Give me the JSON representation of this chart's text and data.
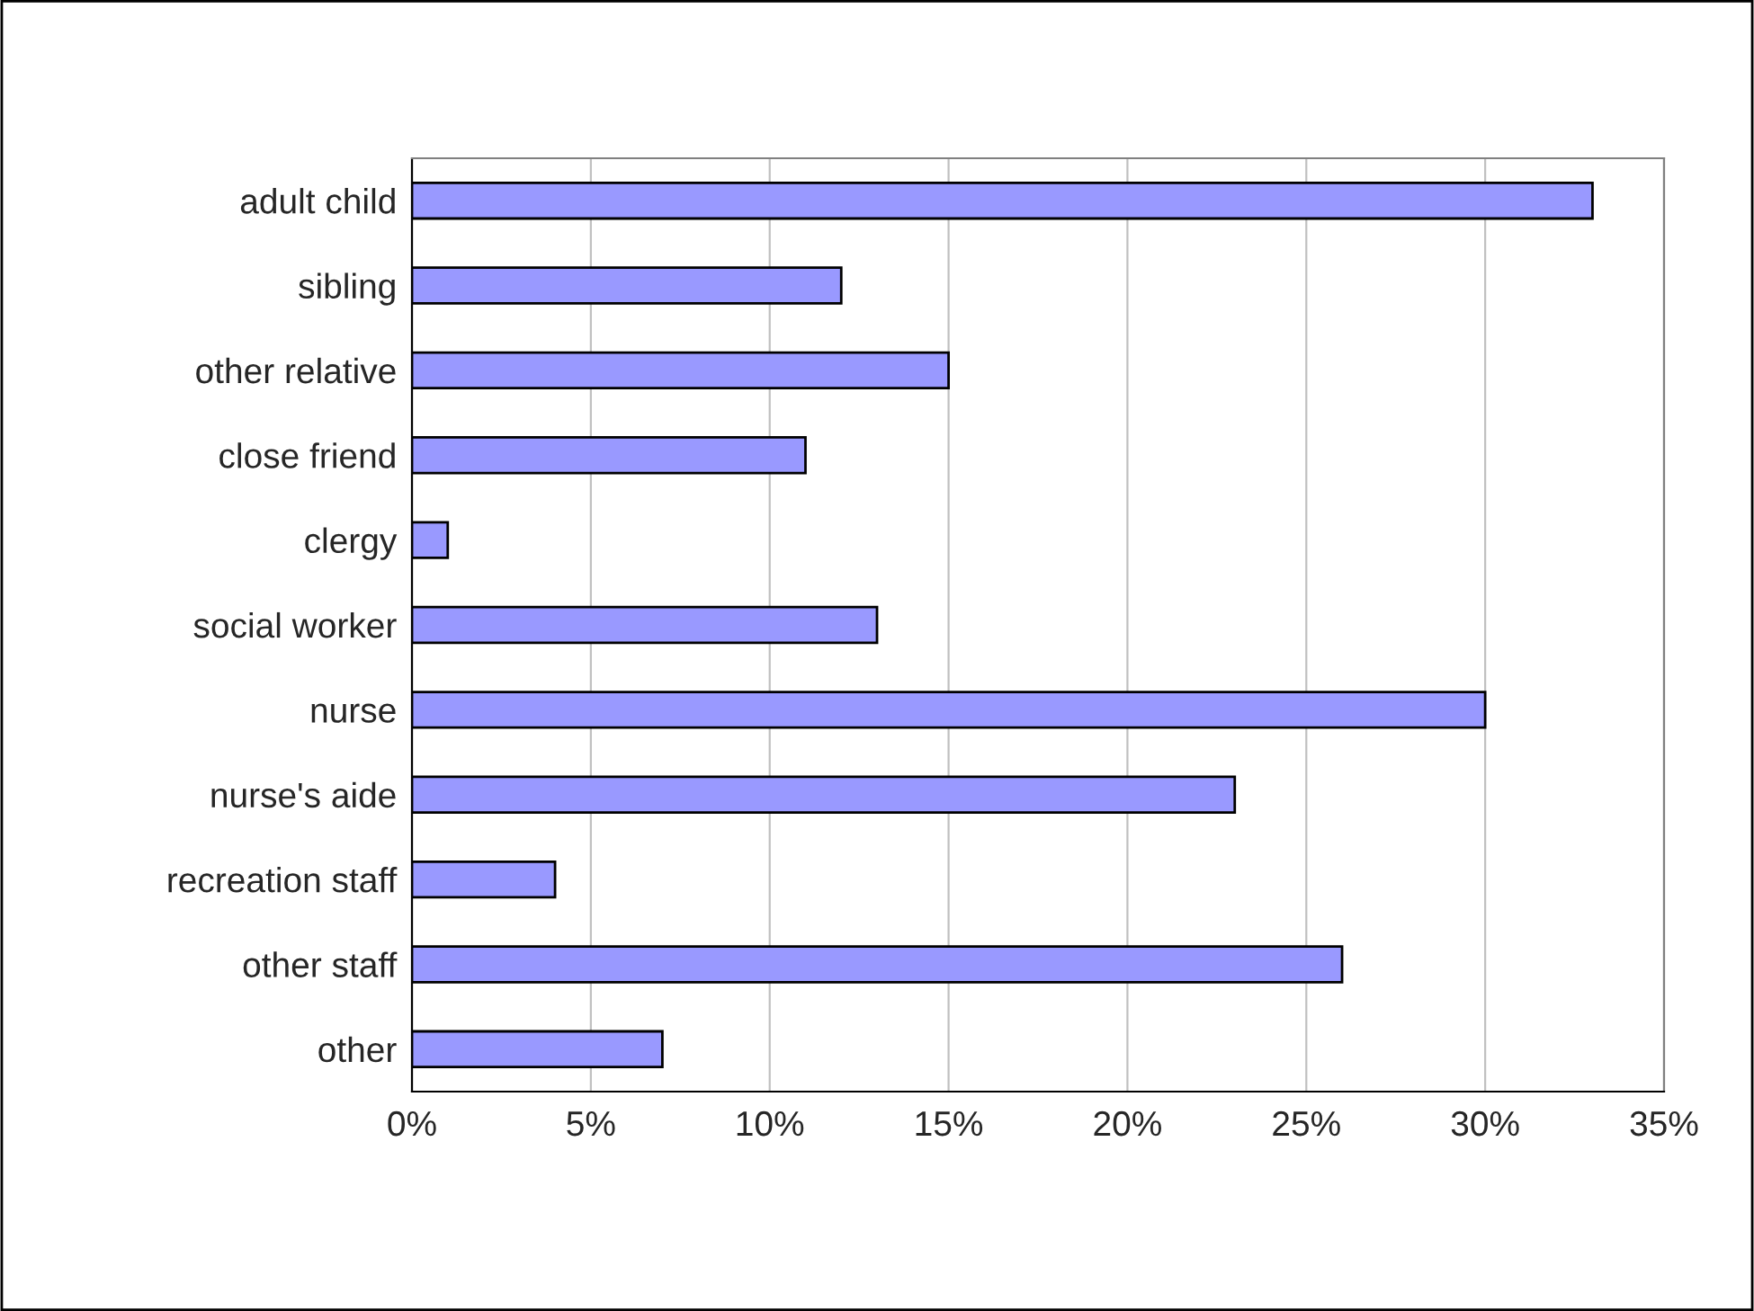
{
  "chart_data": {
    "type": "bar",
    "orientation": "horizontal",
    "categories": [
      "adult child",
      "sibling",
      "other relative",
      "close friend",
      "clergy",
      "social worker",
      "nurse",
      "nurse's aide",
      "recreation staff",
      "other staff",
      "other"
    ],
    "values": [
      33,
      12,
      15,
      11,
      1,
      13,
      30,
      23,
      4,
      26,
      7
    ],
    "color": "#9999ff",
    "xlim": [
      0,
      35
    ],
    "xticks": [
      {
        "value": 0,
        "label": "0%"
      },
      {
        "value": 5,
        "label": "5%"
      },
      {
        "value": 10,
        "label": "10%"
      },
      {
        "value": 15,
        "label": "15%"
      },
      {
        "value": 20,
        "label": "20%"
      },
      {
        "value": 25,
        "label": "25%"
      },
      {
        "value": 30,
        "label": "30%"
      },
      {
        "value": 35,
        "label": "35%"
      }
    ],
    "grid": "x"
  }
}
